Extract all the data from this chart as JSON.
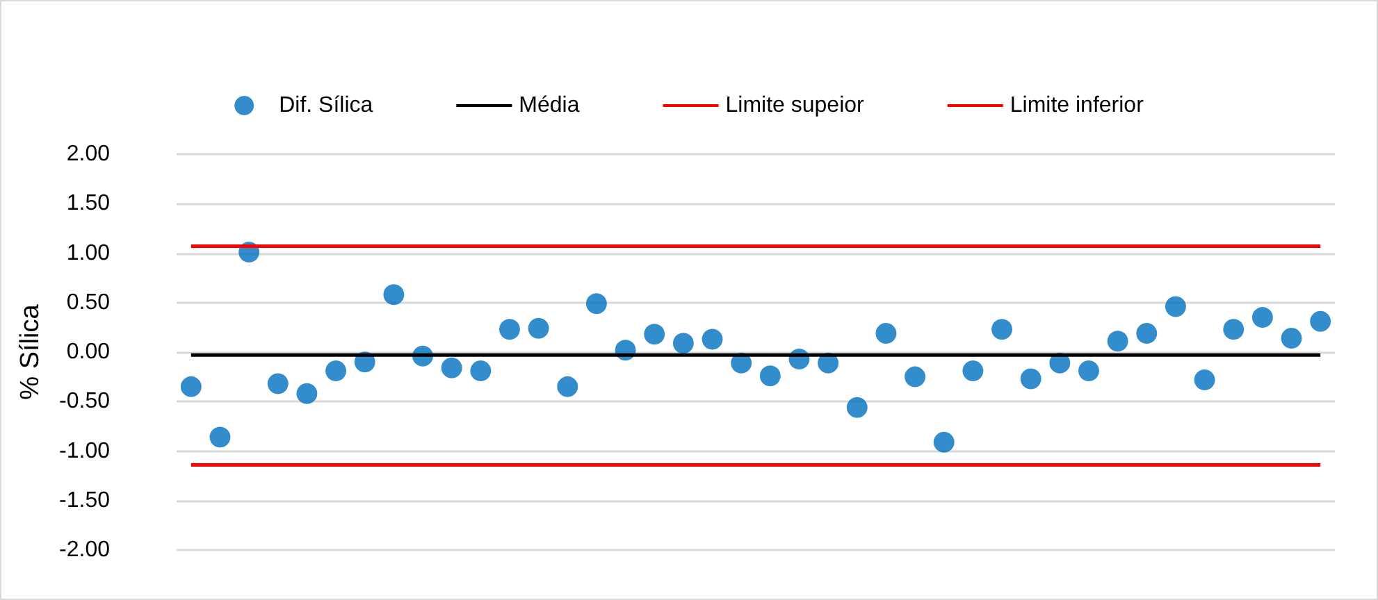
{
  "chart_data": {
    "type": "scatter",
    "ylabel": "% Sílica",
    "categories": [
      null,
      null,
      null,
      null,
      null,
      null,
      null,
      null,
      null,
      null,
      null,
      null,
      null,
      null,
      null,
      null,
      null,
      null,
      null,
      null,
      null,
      null,
      null,
      null,
      null,
      null,
      null,
      null,
      null,
      null,
      null,
      null,
      null,
      null,
      null,
      null,
      null,
      null,
      null,
      null
    ],
    "series": [
      {
        "name": "Dif. Sílica",
        "marker": "circle",
        "color": "#0070c0",
        "values": [
          -0.35,
          -0.86,
          1.01,
          -0.32,
          -0.42,
          -0.19,
          -0.1,
          0.58,
          -0.04,
          -0.16,
          -0.19,
          0.23,
          0.24,
          -0.35,
          0.49,
          0.02,
          0.18,
          0.09,
          0.13,
          -0.11,
          -0.24,
          -0.07,
          -0.11,
          -0.56,
          0.19,
          -0.25,
          -0.91,
          -0.19,
          0.23,
          -0.27,
          -0.11,
          -0.19,
          0.11,
          0.19,
          0.46,
          -0.28,
          0.23,
          0.35,
          0.14,
          0.31
        ]
      },
      {
        "name": "Média",
        "type": "line",
        "marker": "none",
        "color": "#000000",
        "values": [
          -0.03,
          -0.03,
          -0.03,
          -0.03,
          -0.03,
          -0.03,
          -0.03,
          -0.03,
          -0.03,
          -0.03,
          -0.03,
          -0.03,
          -0.03,
          -0.03,
          -0.03,
          -0.03,
          -0.03,
          -0.03,
          -0.03,
          -0.03,
          -0.03,
          -0.03,
          -0.03,
          -0.03,
          -0.03,
          -0.03,
          -0.03,
          -0.03,
          -0.03,
          -0.03,
          -0.03,
          -0.03,
          -0.03,
          -0.03,
          -0.03,
          -0.03,
          -0.03,
          -0.03,
          -0.03,
          -0.03
        ]
      },
      {
        "name": "Limite supeior",
        "type": "line",
        "marker": "none",
        "color": "#ff0000",
        "values": [
          1.07,
          1.07,
          1.07,
          1.07,
          1.07,
          1.07,
          1.07,
          1.07,
          1.07,
          1.07,
          1.07,
          1.07,
          1.07,
          1.07,
          1.07,
          1.07,
          1.07,
          1.07,
          1.07,
          1.07,
          1.07,
          1.07,
          1.07,
          1.07,
          1.07,
          1.07,
          1.07,
          1.07,
          1.07,
          1.07,
          1.07,
          1.07,
          1.07,
          1.07,
          1.07,
          1.07,
          1.07,
          1.07,
          1.07,
          1.07
        ]
      },
      {
        "name": "Limite inferior",
        "type": "line",
        "marker": "none",
        "color": "#ff0000",
        "values": [
          -1.14,
          -1.14,
          -1.14,
          -1.14,
          -1.14,
          -1.14,
          -1.14,
          -1.14,
          -1.14,
          -1.14,
          -1.14,
          -1.14,
          -1.14,
          -1.14,
          -1.14,
          -1.14,
          -1.14,
          -1.14,
          -1.14,
          -1.14,
          -1.14,
          -1.14,
          -1.14,
          -1.14,
          -1.14,
          -1.14,
          -1.14,
          -1.14,
          -1.14,
          -1.14,
          -1.14,
          -1.14,
          -1.14,
          -1.14,
          -1.14,
          -1.14,
          -1.14,
          -1.14,
          -1.14,
          -1.14
        ]
      }
    ],
    "ylim": [
      -2,
      2
    ],
    "yticks": [
      {
        "value": -2,
        "label": "-2.00"
      },
      {
        "value": -1.5,
        "label": "-1.50"
      },
      {
        "value": -1,
        "label": "-1.00"
      },
      {
        "value": -0.5,
        "label": "-0.50"
      },
      {
        "value": 0,
        "label": "0.00"
      },
      {
        "value": 0.5,
        "label": "0.50"
      },
      {
        "value": 1,
        "label": "1.00"
      },
      {
        "value": 1.5,
        "label": "1.50"
      },
      {
        "value": 2,
        "label": "2.00"
      }
    ],
    "tick_labels": "y",
    "grid": "y",
    "legend": "top",
    "line_style": "solid"
  }
}
